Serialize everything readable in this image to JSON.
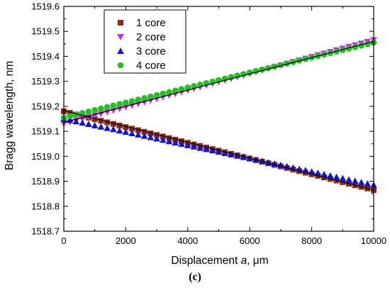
{
  "caption": "(c)",
  "chart_data": {
    "type": "scatter",
    "xlabel": "Displacement a, μm",
    "xlabel_parts": {
      "prefix": "Displacement ",
      "variable": "a",
      "suffix": ", μm"
    },
    "ylabel": "Bragg wavelength, nm",
    "xlim": [
      0,
      10000
    ],
    "ylim": [
      1518.7,
      1519.6
    ],
    "x_ticks": [
      0,
      2000,
      4000,
      6000,
      8000,
      10000
    ],
    "y_ticks": [
      1518.7,
      1518.8,
      1518.9,
      1519.0,
      1519.1,
      1519.2,
      1519.3,
      1519.4,
      1519.5,
      1519.6
    ],
    "x_tick_labels": [
      "0",
      "2000",
      "4000",
      "6000",
      "8000",
      "10000"
    ],
    "y_tick_labels": [
      "1518.7",
      "1518.8",
      "1518.9",
      "1519.0",
      "1519.1",
      "1519.2",
      "1519.3",
      "1519.4",
      "1519.5",
      "1519.6"
    ],
    "grid": false,
    "legend_position": "top-left",
    "x_step": 200,
    "series": [
      {
        "name": "1 core",
        "marker": "square",
        "color": "#8b2a14",
        "start": 1519.18,
        "end": 1518.865
      },
      {
        "name": "2 core",
        "marker": "triangle-down",
        "color": "#c032e0",
        "start": 1519.13,
        "end": 1519.465
      },
      {
        "name": "3 core",
        "marker": "triangle-up",
        "color": "#1414c8",
        "start": 1519.15,
        "end": 1518.885
      },
      {
        "name": "4 core",
        "marker": "circle",
        "color": "#22c022",
        "start": 1519.155,
        "end": 1519.455
      }
    ],
    "fit_lines": [
      {
        "start": 1519.183,
        "end": 1518.865
      },
      {
        "start": 1519.135,
        "end": 1519.46
      }
    ]
  }
}
